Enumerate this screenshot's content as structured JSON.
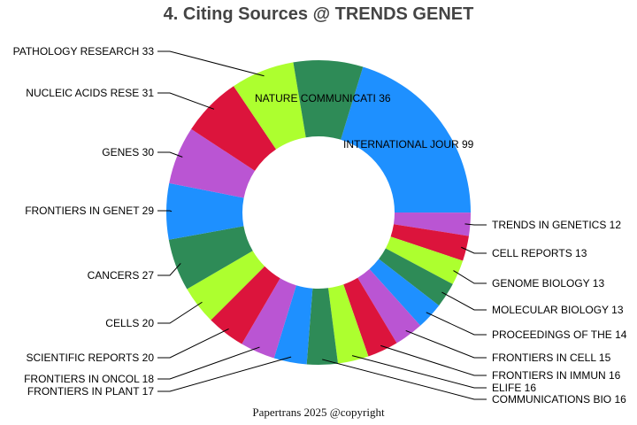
{
  "chart_data": {
    "type": "pie",
    "donut": true,
    "title": "4. Citing Sources @ TRENDS GENET",
    "footer": "Papertrans 2025 @copyright",
    "colors": [
      "#1e90ff",
      "#ba55d3",
      "#dc143c",
      "#adff2f",
      "#2e8b57"
    ],
    "slices": [
      {
        "label": "INTERNATIONAL JOUR",
        "value": 99
      },
      {
        "label": "TRENDS IN GENETICS",
        "value": 12
      },
      {
        "label": "CELL REPORTS",
        "value": 13
      },
      {
        "label": "GENOME BIOLOGY",
        "value": 13
      },
      {
        "label": "MOLECULAR BIOLOGY ",
        "value": 13
      },
      {
        "label": "PROCEEDINGS OF THE",
        "value": 14
      },
      {
        "label": "FRONTIERS IN CELL ",
        "value": 15
      },
      {
        "label": "FRONTIERS IN IMMUN",
        "value": 16
      },
      {
        "label": "ELIFE",
        "value": 16
      },
      {
        "label": "COMMUNICATIONS BIO",
        "value": 16
      },
      {
        "label": "FRONTIERS IN PLANT",
        "value": 17
      },
      {
        "label": "FRONTIERS IN ONCOL",
        "value": 18
      },
      {
        "label": "SCIENTIFIC REPORTS",
        "value": 20
      },
      {
        "label": "CELLS",
        "value": 20
      },
      {
        "label": "CANCERS",
        "value": 27
      },
      {
        "label": "FRONTIERS IN GENET",
        "value": 29
      },
      {
        "label": "GENES",
        "value": 30
      },
      {
        "label": "NUCLEIC ACIDS RESE",
        "value": 31
      },
      {
        "label": "PATHOLOGY RESEARCH",
        "value": 33
      },
      {
        "label": "NATURE COMMUNICATI",
        "value": 36
      }
    ]
  }
}
